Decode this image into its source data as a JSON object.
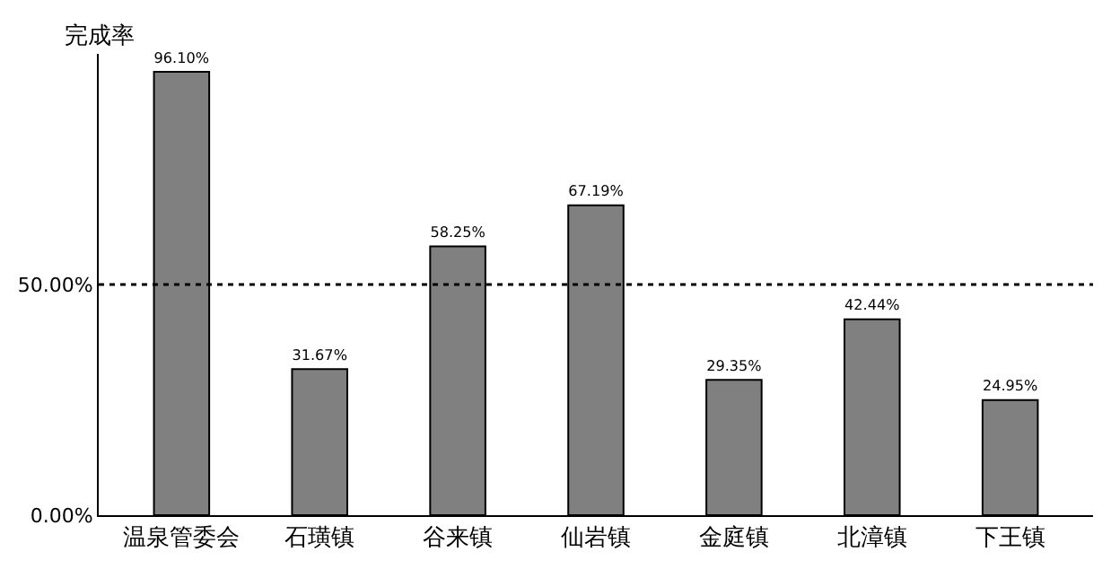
{
  "chart_data": {
    "type": "bar",
    "ylabel": "完成率",
    "categories": [
      "温泉管委会",
      "石璜镇",
      "谷来镇",
      "仙岩镇",
      "金庭镇",
      "北漳镇",
      "下王镇"
    ],
    "values": [
      96.1,
      31.67,
      58.25,
      67.19,
      29.35,
      42.44,
      24.95
    ],
    "value_labels": [
      "96.10%",
      "31.67%",
      "58.25%",
      "67.19%",
      "29.35%",
      "42.44%",
      "24.95%"
    ],
    "color": "#808080",
    "ylim": [
      0,
      100
    ],
    "yticks": [
      {
        "value": 0,
        "label": "0.00%"
      },
      {
        "value": 50,
        "label": "50.00%"
      }
    ],
    "ref_lines": [
      {
        "axis": "y",
        "value": 50,
        "label": null,
        "color": "#000000",
        "line_style": "dotted"
      }
    ]
  }
}
